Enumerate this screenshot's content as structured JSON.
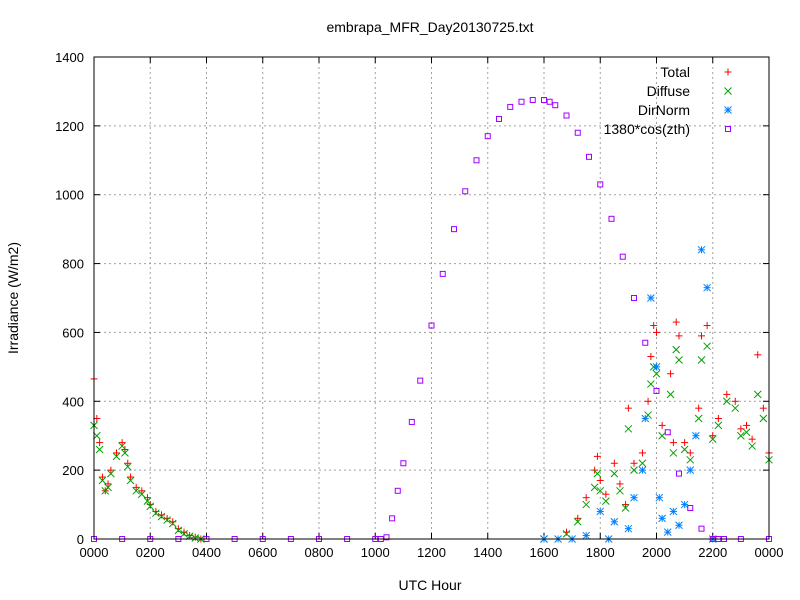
{
  "chart_data": {
    "type": "scatter",
    "title": "embrapa_MFR_Day20130725.txt",
    "xlabel": "UTC Hour",
    "ylabel": "Irradiance (W/m2)",
    "xlim": [
      0,
      24
    ],
    "ylim": [
      0,
      1400
    ],
    "x_ticks": [
      {
        "value": 0,
        "label": "0000"
      },
      {
        "value": 2,
        "label": "0200"
      },
      {
        "value": 4,
        "label": "0400"
      },
      {
        "value": 6,
        "label": "0600"
      },
      {
        "value": 8,
        "label": "0800"
      },
      {
        "value": 10,
        "label": "1000"
      },
      {
        "value": 12,
        "label": "1200"
      },
      {
        "value": 14,
        "label": "1400"
      },
      {
        "value": 16,
        "label": "1600"
      },
      {
        "value": 18,
        "label": "1800"
      },
      {
        "value": 20,
        "label": "2000"
      },
      {
        "value": 22,
        "label": "2200"
      },
      {
        "value": 24,
        "label": "0000"
      }
    ],
    "y_ticks": [
      {
        "value": 0,
        "label": "0"
      },
      {
        "value": 200,
        "label": "200"
      },
      {
        "value": 400,
        "label": "400"
      },
      {
        "value": 600,
        "label": "600"
      },
      {
        "value": 800,
        "label": "800"
      },
      {
        "value": 1000,
        "label": "1000"
      },
      {
        "value": 1200,
        "label": "1200"
      },
      {
        "value": 1400,
        "label": "1400"
      }
    ],
    "grid": true,
    "legend_position": "top-right",
    "series": [
      {
        "name": "Total",
        "marker": "plus",
        "color": "#ff0000",
        "x": [
          0.0,
          0.1,
          0.2,
          0.3,
          0.4,
          0.5,
          0.6,
          0.8,
          1.0,
          1.1,
          1.2,
          1.3,
          1.5,
          1.7,
          1.9,
          2.0,
          2.2,
          2.4,
          2.6,
          2.8,
          3.0,
          3.2,
          3.4,
          3.6,
          3.8,
          16.0,
          16.8,
          17.2,
          17.5,
          17.8,
          17.9,
          18.0,
          18.2,
          18.5,
          18.7,
          18.9,
          19.0,
          19.2,
          19.5,
          19.7,
          19.8,
          19.9,
          20.0,
          20.2,
          20.5,
          20.6,
          20.7,
          20.8,
          21.0,
          21.2,
          21.5,
          21.6,
          21.8,
          22.0,
          22.2,
          22.5,
          22.8,
          23.0,
          23.2,
          23.4,
          23.6,
          23.8,
          24.0
        ],
        "y": [
          465,
          350,
          280,
          180,
          140,
          160,
          200,
          250,
          280,
          260,
          220,
          180,
          150,
          140,
          120,
          100,
          80,
          70,
          60,
          50,
          30,
          20,
          10,
          5,
          0,
          0,
          20,
          60,
          120,
          200,
          240,
          170,
          130,
          220,
          160,
          100,
          380,
          220,
          250,
          400,
          530,
          620,
          600,
          330,
          480,
          280,
          630,
          590,
          280,
          250,
          380,
          590,
          620,
          300,
          350,
          420,
          400,
          320,
          330,
          290,
          535,
          380,
          250
        ]
      },
      {
        "name": "Diffuse",
        "marker": "cross",
        "color": "#00a000",
        "x": [
          0.0,
          0.1,
          0.2,
          0.3,
          0.4,
          0.5,
          0.6,
          0.8,
          1.0,
          1.1,
          1.2,
          1.3,
          1.5,
          1.7,
          1.9,
          2.0,
          2.2,
          2.4,
          2.6,
          2.8,
          3.0,
          3.2,
          3.4,
          3.6,
          3.8,
          16.0,
          16.8,
          17.2,
          17.5,
          17.8,
          17.9,
          18.0,
          18.2,
          18.5,
          18.7,
          18.9,
          19.0,
          19.2,
          19.5,
          19.7,
          19.8,
          19.9,
          20.0,
          20.2,
          20.5,
          20.6,
          20.7,
          20.8,
          21.0,
          21.2,
          21.5,
          21.6,
          21.8,
          22.0,
          22.2,
          22.5,
          22.8,
          23.0,
          23.2,
          23.4,
          23.6,
          23.8,
          24.0
        ],
        "y": [
          330,
          300,
          260,
          170,
          140,
          150,
          190,
          240,
          270,
          250,
          210,
          170,
          140,
          130,
          110,
          95,
          75,
          65,
          55,
          45,
          25,
          15,
          8,
          3,
          0,
          0,
          15,
          50,
          100,
          150,
          190,
          140,
          110,
          190,
          140,
          90,
          320,
          200,
          220,
          360,
          450,
          500,
          480,
          300,
          420,
          250,
          550,
          520,
          260,
          230,
          350,
          520,
          560,
          290,
          330,
          400,
          380,
          300,
          310,
          270,
          420,
          350,
          230
        ]
      },
      {
        "name": "DirNorm",
        "marker": "star",
        "color": "#0080ff",
        "x": [
          16.0,
          16.5,
          17.0,
          17.5,
          18.0,
          18.3,
          18.5,
          19.0,
          19.2,
          19.5,
          19.6,
          19.8,
          20.0,
          20.1,
          20.2,
          20.4,
          20.6,
          20.8,
          21.0,
          21.2,
          21.4,
          21.6,
          21.8,
          22.0
        ],
        "y": [
          0,
          0,
          0,
          10,
          80,
          0,
          50,
          30,
          120,
          200,
          350,
          700,
          500,
          120,
          60,
          20,
          80,
          40,
          100,
          200,
          300,
          840,
          730,
          0
        ]
      },
      {
        "name": "1380*cos(zth)",
        "marker": "square",
        "color": "#a000ff",
        "x": [
          0.0,
          1.0,
          2.0,
          3.0,
          4.0,
          5.0,
          6.0,
          7.0,
          8.0,
          9.0,
          10.0,
          10.2,
          10.4,
          10.6,
          10.8,
          11.0,
          11.3,
          11.6,
          12.0,
          12.4,
          12.8,
          13.2,
          13.6,
          14.0,
          14.4,
          14.8,
          15.2,
          15.6,
          16.0,
          16.2,
          16.4,
          16.8,
          17.2,
          17.6,
          18.0,
          18.4,
          18.8,
          19.2,
          19.6,
          20.0,
          20.4,
          20.8,
          21.2,
          21.6,
          22.0,
          22.2,
          22.4,
          23.0,
          24.0
        ],
        "y": [
          0,
          0,
          0,
          0,
          0,
          0,
          0,
          0,
          0,
          0,
          0,
          0,
          5,
          60,
          140,
          220,
          340,
          460,
          620,
          770,
          900,
          1010,
          1100,
          1170,
          1220,
          1255,
          1270,
          1275,
          1275,
          1270,
          1260,
          1230,
          1180,
          1110,
          1030,
          930,
          820,
          700,
          570,
          430,
          310,
          190,
          90,
          30,
          0,
          0,
          0,
          0,
          0
        ]
      }
    ]
  }
}
